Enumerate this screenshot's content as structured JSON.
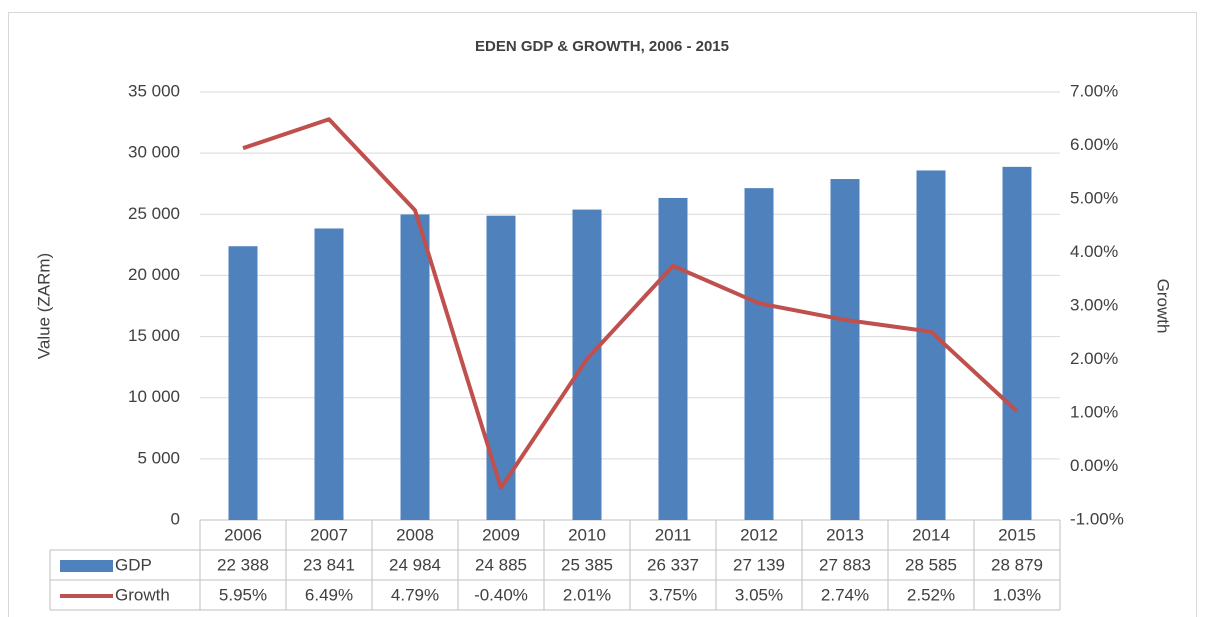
{
  "chart_data": {
    "type": "bar_line",
    "title": "EDEN GDP & GROWTH, 2006 - 2015",
    "y_label": "Value (ZARm)",
    "y2_label": "Growth",
    "categories": [
      "2006",
      "2007",
      "2008",
      "2009",
      "2010",
      "2011",
      "2012",
      "2013",
      "2014",
      "2015"
    ],
    "series": [
      {
        "name": "GDP",
        "color": "#4f81bd",
        "type": "bar",
        "values": [
          22388,
          23841,
          24984,
          24885,
          25385,
          26337,
          27139,
          27883,
          28585,
          28879
        ],
        "value_labels": [
          "22 388",
          "23 841",
          "24 984",
          "24 885",
          "25 385",
          "26 337",
          "27 139",
          "27 883",
          "28 585",
          "28 879"
        ]
      },
      {
        "name": "Growth",
        "color": "#c0504d",
        "type": "line",
        "axis": "y2",
        "values": [
          5.95,
          6.49,
          4.79,
          -0.4,
          2.01,
          3.75,
          3.05,
          2.74,
          2.52,
          1.03
        ],
        "value_labels": [
          "5.95%",
          "6.49%",
          "4.79%",
          "-0.40%",
          "2.01%",
          "3.75%",
          "3.05%",
          "2.74%",
          "2.52%",
          "1.03%"
        ]
      }
    ],
    "ylim": [
      0,
      35000
    ],
    "yticks": [
      0,
      {
        "value": 5000,
        "label": "5 000"
      },
      {
        "value": 10000,
        "label": "10 000"
      },
      {
        "value": 15000,
        "label": "15 000"
      },
      {
        "value": 20000,
        "label": "20 000"
      },
      {
        "value": 25000,
        "label": "25 000"
      },
      {
        "value": 30000,
        "label": "30 000"
      },
      {
        "value": 35000,
        "label": "35 000"
      }
    ],
    "y2lim": [
      -1,
      7
    ],
    "y2ticks": [
      {
        "value": -1,
        "label": "-1.00%"
      },
      {
        "value": 0,
        "label": "0.00%"
      },
      {
        "value": 1,
        "label": "1.00%"
      },
      {
        "value": 2,
        "label": "2.00%"
      },
      {
        "value": 3,
        "label": "3.00%"
      },
      {
        "value": 4,
        "label": "4.00%"
      },
      {
        "value": 5,
        "label": "5.00%"
      },
      {
        "value": 6,
        "label": "6.00%"
      },
      {
        "value": 7,
        "label": "7.00%"
      }
    ],
    "grid": true
  }
}
